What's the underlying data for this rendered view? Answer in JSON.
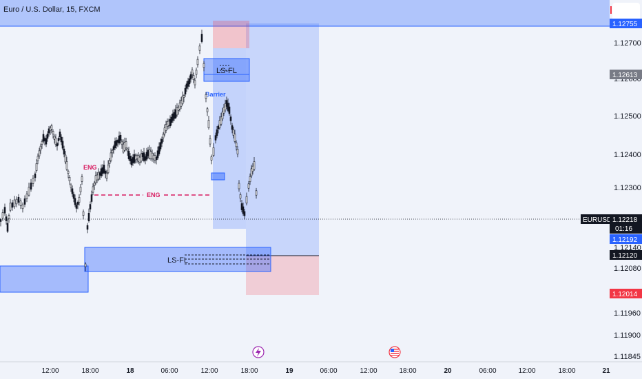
{
  "header": {
    "title": "Euro / U.S. Dollar, 15, FXCM"
  },
  "price_scale": {
    "ticks": [
      "1.12700",
      "1.12600",
      "1.12500",
      "1.12400",
      "1.12300",
      "1.12140",
      "1.12080",
      "1.11960",
      "1.11900",
      "1.11845"
    ],
    "tags": {
      "top_highlight": "1.12755",
      "grey_tag": "1.12613",
      "symbol": "EURUSD",
      "last_price": "1.12218",
      "countdown": "01:16",
      "blue_tag": "1.12192",
      "black_tag": "1.12120",
      "red_tag": "1.12014"
    }
  },
  "time_axis": {
    "labels": [
      {
        "text": "12:00",
        "bold": false
      },
      {
        "text": "18:00",
        "bold": false
      },
      {
        "text": "18",
        "bold": true
      },
      {
        "text": "06:00",
        "bold": false
      },
      {
        "text": "12:00",
        "bold": false
      },
      {
        "text": "18:00",
        "bold": false
      },
      {
        "text": "19",
        "bold": true
      },
      {
        "text": "06:00",
        "bold": false
      },
      {
        "text": "12:00",
        "bold": false
      },
      {
        "text": "18:00",
        "bold": false
      },
      {
        "text": "20",
        "bold": true
      },
      {
        "text": "06:00",
        "bold": false
      },
      {
        "text": "12:00",
        "bold": false
      },
      {
        "text": "18:00",
        "bold": false
      },
      {
        "text": "21",
        "bold": true
      }
    ]
  },
  "annotations": {
    "ls_fl_upper": "LS-FL",
    "ls_fl_lower": "LS-FL",
    "barrier": "Barrier",
    "eng_upper": "ENG",
    "eng_lower": "ENG"
  },
  "events": {
    "lightning_icon": "lightning-icon",
    "us_flag_icon": "us-flag-icon"
  },
  "colors": {
    "background": "#f0f3fa",
    "up_candle": "#ffffff",
    "down_candle": "#131722",
    "zone_blue": "#2962ff",
    "zone_red": "#f23645",
    "eng": "#d81b60"
  }
}
